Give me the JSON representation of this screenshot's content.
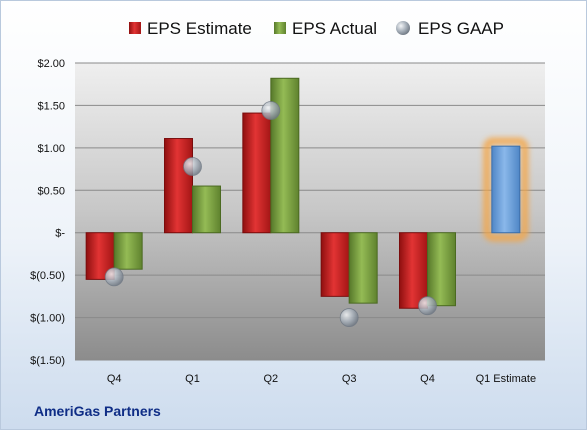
{
  "chart_data": {
    "type": "bar",
    "categories": [
      "Q4",
      "Q1",
      "Q2",
      "Q3",
      "Q4",
      "Q1 Estimate"
    ],
    "series": [
      {
        "name": "EPS Estimate",
        "values": [
          -0.55,
          1.11,
          1.41,
          -0.75,
          -0.89,
          null
        ]
      },
      {
        "name": "EPS Actual",
        "values": [
          -0.43,
          0.55,
          1.82,
          -0.83,
          -0.86,
          null
        ]
      },
      {
        "name": "EPS GAAP",
        "values": [
          -0.52,
          0.78,
          1.44,
          -1.0,
          -0.86,
          null
        ]
      },
      {
        "name": "",
        "values": [
          null,
          null,
          null,
          null,
          null,
          1.02
        ]
      }
    ],
    "ylim": [
      -1.5,
      2.0
    ],
    "yticks": [
      "$(1.50)",
      "$(1.00)",
      "$(0.50)",
      "$-",
      "$0.50",
      "$1.00",
      "$1.50",
      "$2.00"
    ],
    "ytick_values": [
      -1.5,
      -1.0,
      -0.5,
      0,
      0.5,
      1.0,
      1.5,
      2.0
    ],
    "grid": true,
    "legend_position": "top",
    "colors": {
      "estimate": "#d42a2a",
      "actual": "#7fa443",
      "gaap": "#a9b2bd",
      "next_estimate": "#6ea1da",
      "highlight": "#f5a544"
    }
  },
  "company": "AmeriGas Partners"
}
